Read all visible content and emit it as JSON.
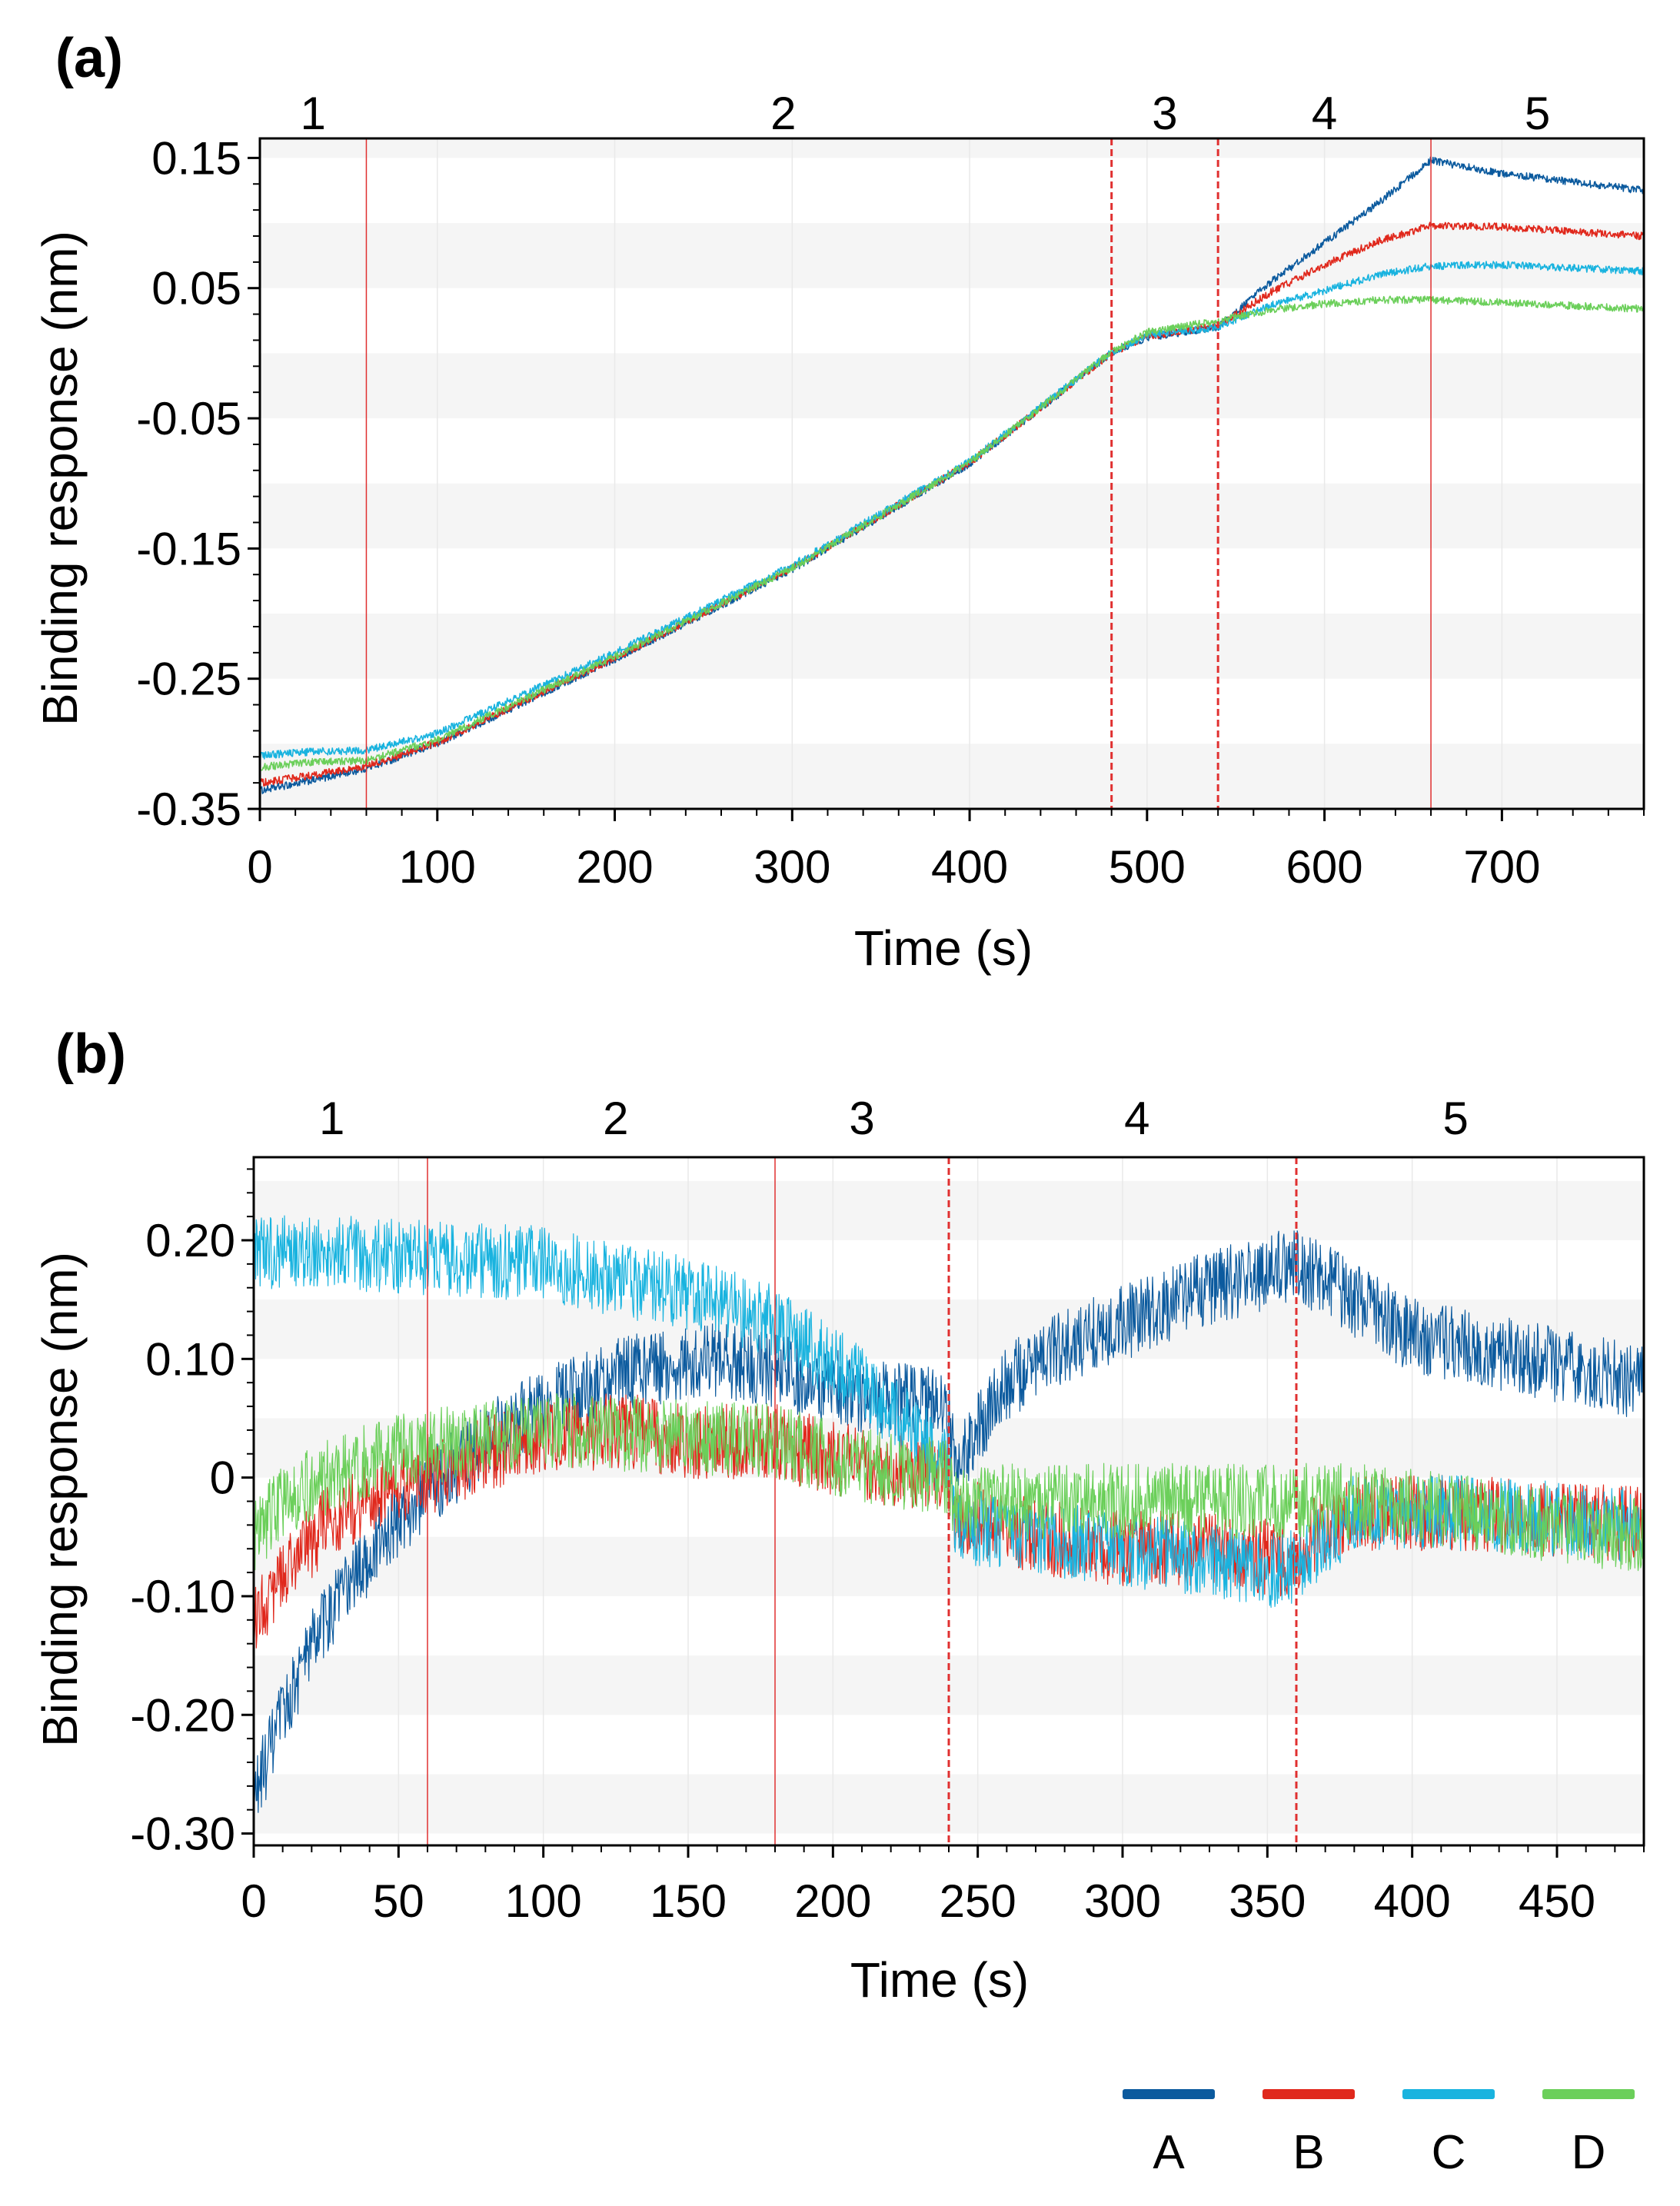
{
  "figure": {
    "legend": [
      {
        "key": "A",
        "color": "#0b5a9e"
      },
      {
        "key": "B",
        "color": "#e0281c"
      },
      {
        "key": "C",
        "color": "#19b3df"
      },
      {
        "key": "D",
        "color": "#6bcf5a"
      }
    ],
    "boundary_color": "#e03030"
  },
  "chart_data": [
    {
      "id": "a",
      "panel_label": "(a)",
      "type": "line",
      "xlabel": "Time (s)",
      "ylabel": "Binding response (nm)",
      "xlim": [
        0,
        780
      ],
      "ylim": [
        -0.35,
        0.165
      ],
      "xticks": [
        0,
        100,
        200,
        300,
        400,
        500,
        600,
        700
      ],
      "xtick_labels": [
        "0",
        "100",
        "200",
        "300",
        "400",
        "500",
        "600",
        "700"
      ],
      "yticks": [
        -0.35,
        -0.25,
        -0.15,
        -0.05,
        0.05,
        0.15
      ],
      "ytick_labels": [
        "-0.35",
        "-0.25",
        "-0.15",
        "-0.05",
        "0.05",
        "0.15"
      ],
      "phase_boundaries": [
        {
          "x": 60,
          "style": "solid"
        },
        {
          "x": 480,
          "style": "dashed"
        },
        {
          "x": 540,
          "style": "dashed"
        },
        {
          "x": 660,
          "style": "solid"
        }
      ],
      "phase_labels": [
        {
          "text": "1",
          "x": 30
        },
        {
          "text": "2",
          "x": 295
        },
        {
          "text": "3",
          "x": 510
        },
        {
          "text": "4",
          "x": 600
        },
        {
          "text": "5",
          "x": 720
        }
      ],
      "noise": 0.0018,
      "series": [
        {
          "name": "A",
          "points": [
            [
              0,
              -0.336
            ],
            [
              30,
              -0.328
            ],
            [
              60,
              -0.319
            ],
            [
              100,
              -0.3
            ],
            [
              200,
              -0.235
            ],
            [
              300,
              -0.166
            ],
            [
              400,
              -0.085
            ],
            [
              480,
              -0.0
            ],
            [
              500,
              0.012
            ],
            [
              540,
              0.02
            ],
            [
              570,
              0.055
            ],
            [
              600,
              0.085
            ],
            [
              630,
              0.115
            ],
            [
              660,
              0.148
            ],
            [
              700,
              0.138
            ],
            [
              780,
              0.125
            ]
          ]
        },
        {
          "name": "B",
          "points": [
            [
              0,
              -0.33
            ],
            [
              30,
              -0.324
            ],
            [
              60,
              -0.317
            ],
            [
              100,
              -0.299
            ],
            [
              200,
              -0.234
            ],
            [
              300,
              -0.165
            ],
            [
              400,
              -0.084
            ],
            [
              480,
              0.0
            ],
            [
              500,
              0.013
            ],
            [
              540,
              0.021
            ],
            [
              570,
              0.047
            ],
            [
              600,
              0.068
            ],
            [
              630,
              0.086
            ],
            [
              660,
              0.098
            ],
            [
              700,
              0.097
            ],
            [
              780,
              0.09
            ]
          ]
        },
        {
          "name": "C",
          "points": [
            [
              0,
              -0.309
            ],
            [
              30,
              -0.306
            ],
            [
              60,
              -0.305
            ],
            [
              100,
              -0.292
            ],
            [
              200,
              -0.23
            ],
            [
              300,
              -0.163
            ],
            [
              400,
              -0.083
            ],
            [
              480,
              0.001
            ],
            [
              500,
              0.014
            ],
            [
              540,
              0.02
            ],
            [
              570,
              0.037
            ],
            [
              600,
              0.048
            ],
            [
              630,
              0.06
            ],
            [
              660,
              0.067
            ],
            [
              700,
              0.068
            ],
            [
              780,
              0.063
            ]
          ]
        },
        {
          "name": "D",
          "points": [
            [
              0,
              -0.318
            ],
            [
              30,
              -0.314
            ],
            [
              60,
              -0.313
            ],
            [
              100,
              -0.297
            ],
            [
              200,
              -0.233
            ],
            [
              300,
              -0.165
            ],
            [
              400,
              -0.084
            ],
            [
              480,
              0.001
            ],
            [
              500,
              0.016
            ],
            [
              540,
              0.025
            ],
            [
              570,
              0.033
            ],
            [
              600,
              0.038
            ],
            [
              630,
              0.041
            ],
            [
              660,
              0.041
            ],
            [
              700,
              0.039
            ],
            [
              780,
              0.034
            ]
          ]
        }
      ]
    },
    {
      "id": "b",
      "panel_label": "(b)",
      "type": "line",
      "xlabel": "Time (s)",
      "ylabel": "Binding response (nm)",
      "xlim": [
        0,
        480
      ],
      "ylim": [
        -0.31,
        0.27
      ],
      "xticks": [
        0,
        50,
        100,
        150,
        200,
        250,
        300,
        350,
        400,
        450
      ],
      "xtick_labels": [
        "0",
        "50",
        "100",
        "150",
        "200",
        "250",
        "300",
        "350",
        "400",
        "450"
      ],
      "yticks": [
        -0.3,
        -0.2,
        -0.1,
        0,
        0.1,
        0.2
      ],
      "ytick_labels": [
        "-0.30",
        "-0.20",
        "-0.10",
        "0",
        "0.10",
        "0.20"
      ],
      "phase_boundaries": [
        {
          "x": 60,
          "style": "solid"
        },
        {
          "x": 180,
          "style": "solid"
        },
        {
          "x": 240,
          "style": "dashed"
        },
        {
          "x": 360,
          "style": "dashed"
        }
      ],
      "phase_labels": [
        {
          "text": "1",
          "x": 27
        },
        {
          "text": "2",
          "x": 125
        },
        {
          "text": "3",
          "x": 210
        },
        {
          "text": "4",
          "x": 305
        },
        {
          "text": "5",
          "x": 415
        }
      ],
      "noise": 0.02,
      "series": [
        {
          "name": "A",
          "points": [
            [
              0,
              -0.27
            ],
            [
              10,
              -0.2
            ],
            [
              20,
              -0.14
            ],
            [
              30,
              -0.1
            ],
            [
              45,
              -0.05
            ],
            [
              60,
              -0.01
            ],
            [
              80,
              0.03
            ],
            [
              100,
              0.06
            ],
            [
              130,
              0.09
            ],
            [
              160,
              0.1
            ],
            [
              180,
              0.09
            ],
            [
              210,
              0.07
            ],
            [
              240,
              0.06
            ],
            [
              242,
              0.01
            ],
            [
              260,
              0.08
            ],
            [
              280,
              0.11
            ],
            [
              300,
              0.13
            ],
            [
              330,
              0.16
            ],
            [
              360,
              0.18
            ],
            [
              380,
              0.15
            ],
            [
              400,
              0.12
            ],
            [
              440,
              0.1
            ],
            [
              480,
              0.08
            ]
          ]
        },
        {
          "name": "B",
          "points": [
            [
              0,
              -0.12
            ],
            [
              10,
              -0.08
            ],
            [
              25,
              -0.04
            ],
            [
              45,
              -0.01
            ],
            [
              60,
              0.0
            ],
            [
              80,
              0.02
            ],
            [
              100,
              0.035
            ],
            [
              130,
              0.04
            ],
            [
              150,
              0.03
            ],
            [
              180,
              0.03
            ],
            [
              210,
              0.01
            ],
            [
              240,
              0.0
            ],
            [
              242,
              -0.03
            ],
            [
              270,
              -0.05
            ],
            [
              300,
              -0.06
            ],
            [
              330,
              -0.06
            ],
            [
              360,
              -0.07
            ],
            [
              365,
              -0.05
            ],
            [
              380,
              -0.03
            ],
            [
              420,
              -0.03
            ],
            [
              480,
              -0.04
            ]
          ]
        },
        {
          "name": "C",
          "points": [
            [
              0,
              0.19
            ],
            [
              30,
              0.19
            ],
            [
              60,
              0.185
            ],
            [
              100,
              0.18
            ],
            [
              150,
              0.155
            ],
            [
              180,
              0.13
            ],
            [
              210,
              0.08
            ],
            [
              240,
              0.01
            ],
            [
              242,
              -0.04
            ],
            [
              270,
              -0.05
            ],
            [
              300,
              -0.06
            ],
            [
              330,
              -0.07
            ],
            [
              355,
              -0.08
            ],
            [
              362,
              -0.07
            ],
            [
              380,
              -0.03
            ],
            [
              420,
              -0.03
            ],
            [
              480,
              -0.04
            ]
          ]
        },
        {
          "name": "D",
          "points": [
            [
              0,
              -0.05
            ],
            [
              10,
              -0.02
            ],
            [
              25,
              0.0
            ],
            [
              45,
              0.02
            ],
            [
              70,
              0.03
            ],
            [
              100,
              0.04
            ],
            [
              150,
              0.035
            ],
            [
              180,
              0.03
            ],
            [
              210,
              0.01
            ],
            [
              240,
              0.0
            ],
            [
              242,
              -0.02
            ],
            [
              270,
              -0.02
            ],
            [
              300,
              -0.02
            ],
            [
              330,
              -0.02
            ],
            [
              360,
              -0.02
            ],
            [
              380,
              -0.02
            ],
            [
              420,
              -0.03
            ],
            [
              480,
              -0.05
            ]
          ]
        }
      ]
    }
  ]
}
